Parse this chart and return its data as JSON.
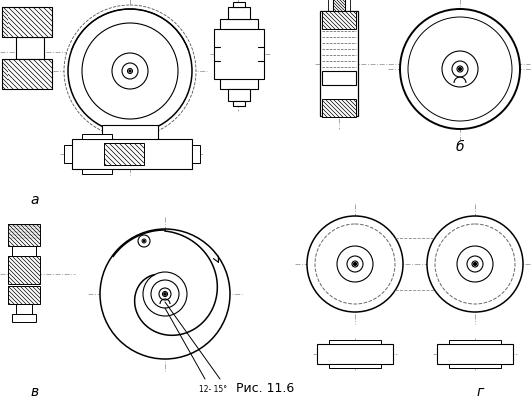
{
  "title": "Рис. 11.6",
  "label_a": "а",
  "label_b": "б",
  "label_v": "в",
  "label_g": "г",
  "bg_color": "#ffffff",
  "line_color": "#000000",
  "hatch_color": "#000000",
  "center_color": "#999999",
  "angle_label": "12- 15°",
  "fig_w": 5.31,
  "fig_h": 4.02,
  "dpi": 100
}
